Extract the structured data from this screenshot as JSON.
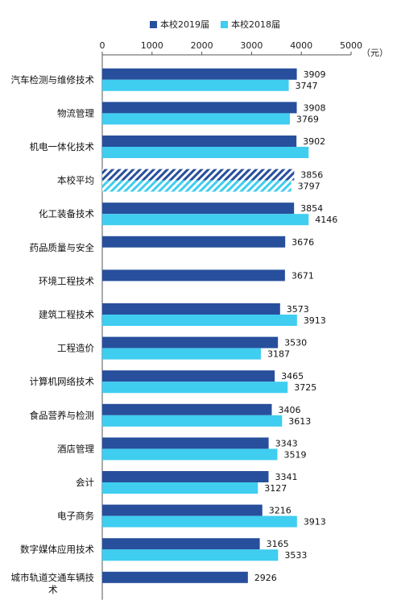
{
  "chart_data": {
    "type": "bar",
    "orientation": "horizontal",
    "unit": "（元）",
    "xlim": [
      0,
      5000
    ],
    "xticks": [
      "0",
      "1000",
      "2000",
      "3000",
      "4000",
      "5000"
    ],
    "legend_position": "top",
    "categories": [
      "汽车检测与维修技术",
      "物流管理",
      "机电一体化技术",
      "本校平均",
      "化工装备技术",
      "药品质量与安全",
      "环境工程技术",
      "建筑工程技术",
      "工程造价",
      "计算机网络技术",
      "食品营养与检测",
      "酒店管理",
      "会计",
      "电子商务",
      "数字媒体应用技术",
      "城市轨道交通车辆技术"
    ],
    "series": [
      {
        "name": "本校2019届",
        "color": "#274f9c",
        "values": [
          3909,
          3908,
          3902,
          3856,
          3854,
          3676,
          3671,
          3573,
          3530,
          3465,
          3406,
          3343,
          3341,
          3216,
          3165,
          2926
        ]
      },
      {
        "name": "本校2018届",
        "color": "#3fcdf0",
        "values": [
          3747,
          3769,
          4146,
          3797,
          4146,
          null,
          null,
          3913,
          3187,
          3725,
          3613,
          3519,
          3127,
          3913,
          3533,
          null
        ]
      }
    ],
    "hatched_category": "本校平均"
  },
  "chart_labels": [
    [
      "3909",
      "3747"
    ],
    [
      "3908",
      "3769"
    ],
    [
      "3902",
      ""
    ],
    [
      "3856",
      "3797"
    ],
    [
      "3854",
      "4146"
    ],
    [
      "3676",
      ""
    ],
    [
      "3671",
      ""
    ],
    [
      "3573",
      "3913"
    ],
    [
      "3530",
      "3187"
    ],
    [
      "3465",
      "3725"
    ],
    [
      "3406",
      "3613"
    ],
    [
      "3343",
      "3519"
    ],
    [
      "3341",
      "3127"
    ],
    [
      "3216",
      "3913"
    ],
    [
      "3165",
      "3533"
    ],
    [
      "2926",
      ""
    ]
  ]
}
